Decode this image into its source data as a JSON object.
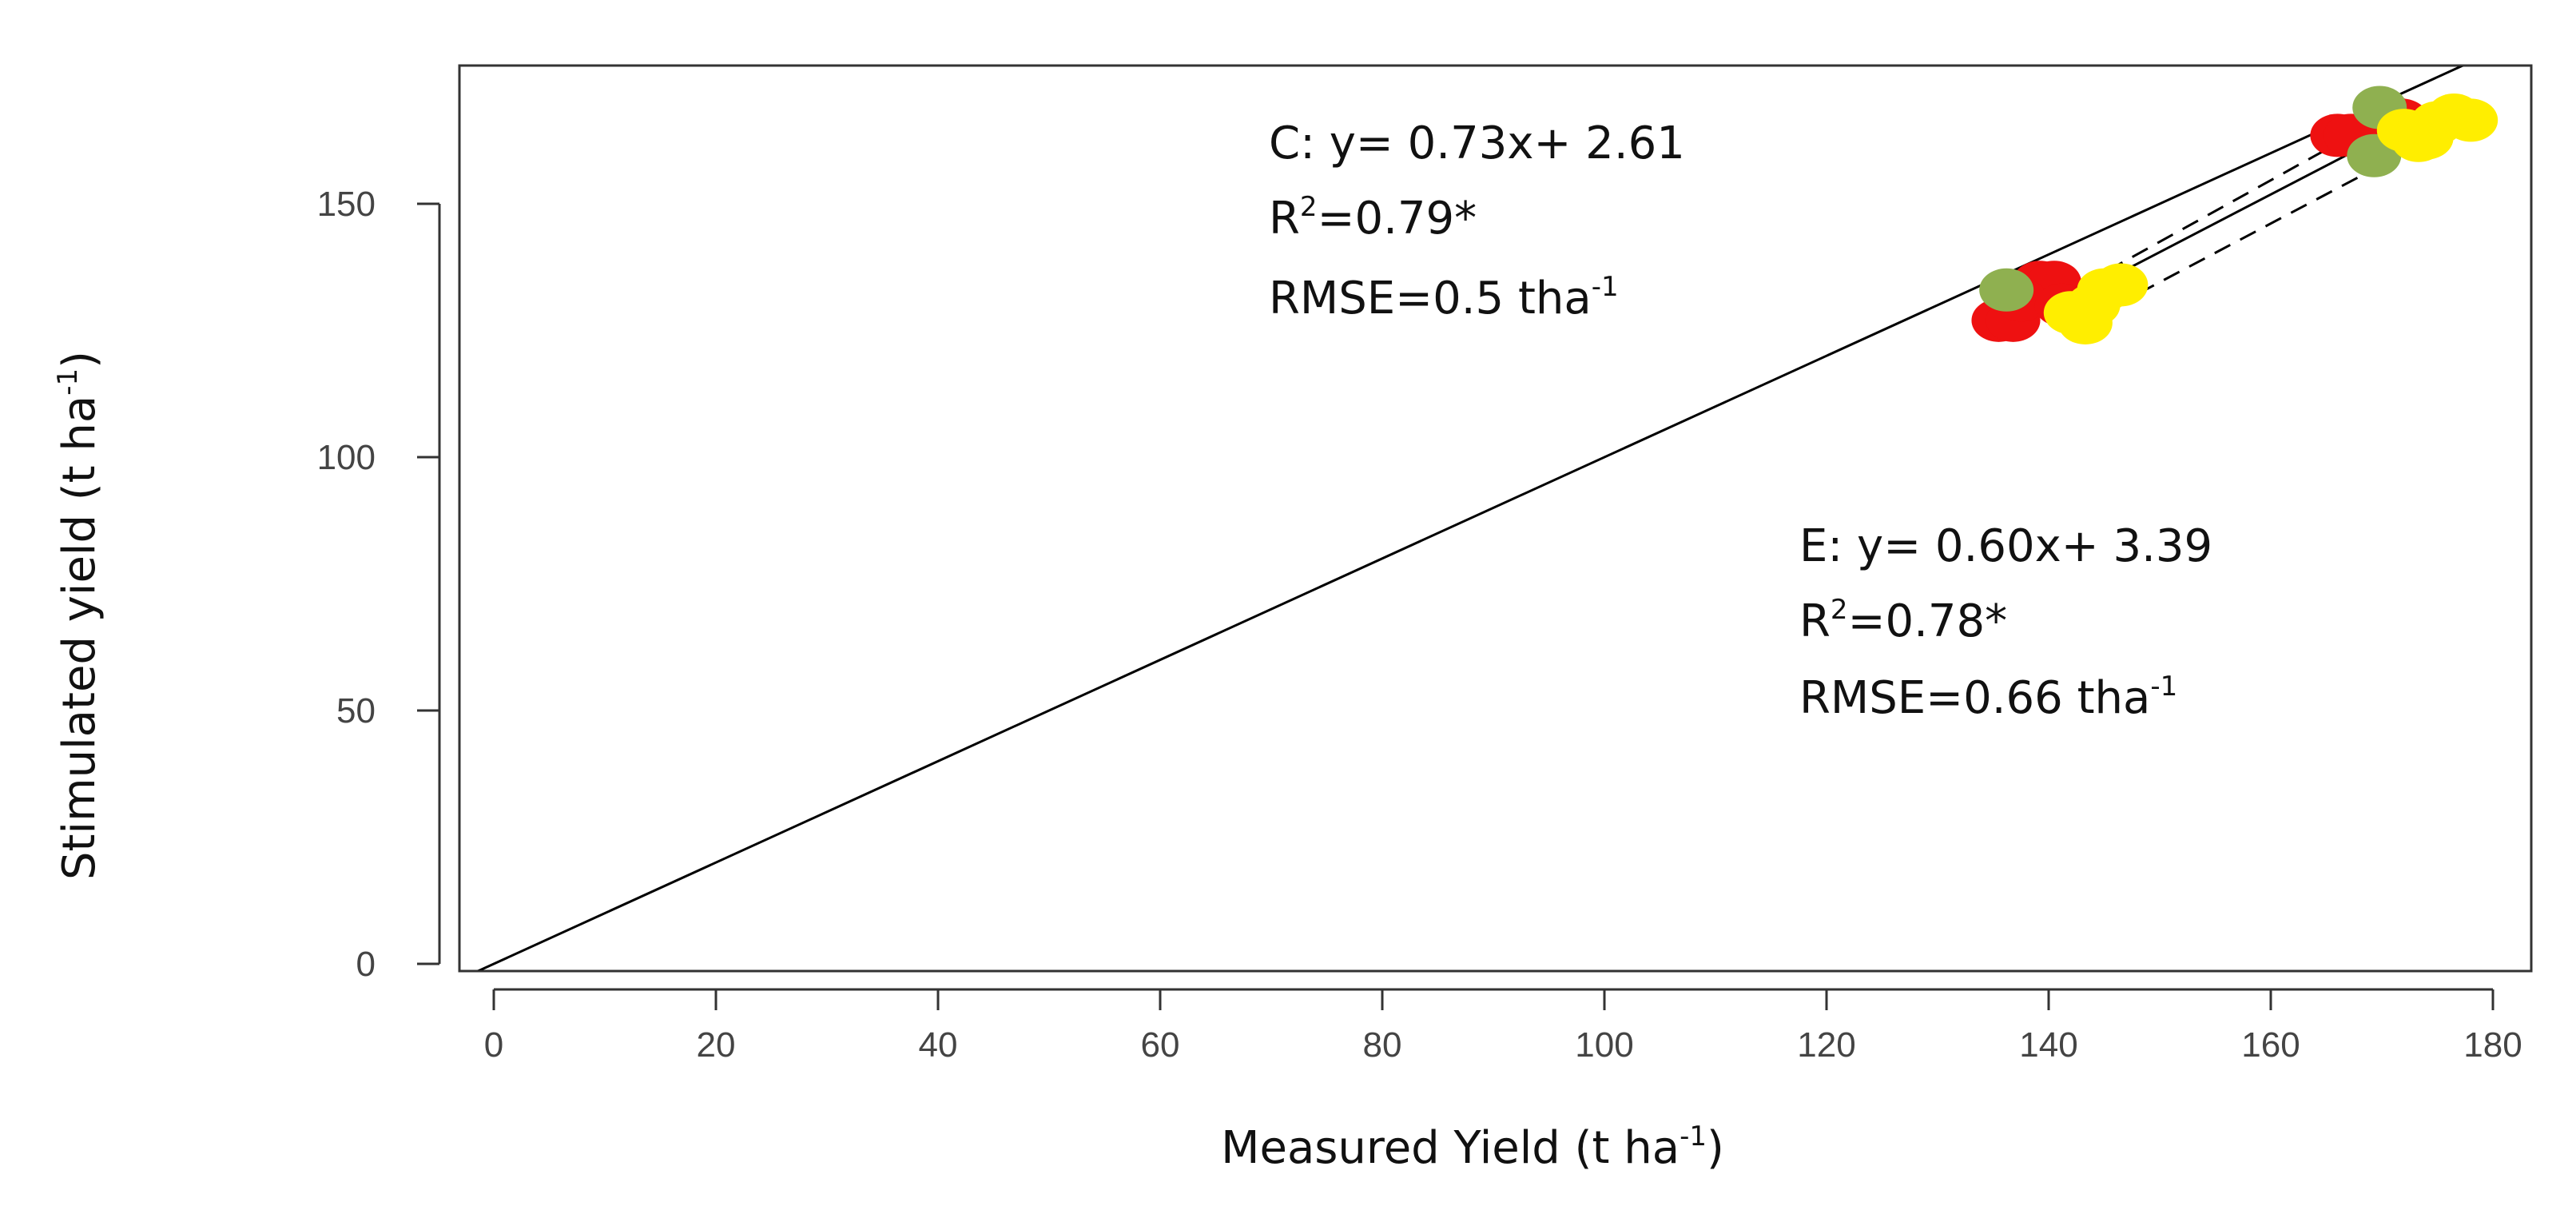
{
  "chart_data": {
    "type": "scatter",
    "xlabel": {
      "text": "Measured Yield (t ha",
      "sup": "-1",
      "tail": ")"
    },
    "ylabel": {
      "text": "Stimulated yield (t ha",
      "sup": "-1",
      "tail": ")"
    },
    "xlim": [
      -3,
      183
    ],
    "ylim": [
      -3,
      176
    ],
    "x_ticks": [
      0,
      20,
      40,
      60,
      80,
      100,
      120,
      140,
      160,
      180
    ],
    "y_ticks": [
      0,
      50,
      100,
      150
    ],
    "grid": false,
    "reference_line": {
      "name": "1:1",
      "x": [
        -3,
        183
      ],
      "y": [
        -3,
        183
      ],
      "color": "#000000"
    },
    "series": [
      {
        "color": "#ee1111",
        "points": [
          [
            135.5,
            127
          ],
          [
            136.8,
            127
          ],
          [
            139.2,
            134.5
          ],
          [
            140.5,
            134.5
          ],
          [
            137.5,
            131
          ],
          [
            141.2,
            130
          ],
          [
            166,
            163.5
          ],
          [
            167.2,
            163.5
          ],
          [
            170.5,
            167.5
          ],
          [
            171.8,
            166.5
          ]
        ]
      },
      {
        "color": "#8fb050",
        "points": [
          [
            136.2,
            133
          ],
          [
            169.8,
            169
          ],
          [
            169.3,
            159.5
          ]
        ]
      },
      {
        "color": "#ffee00",
        "points": [
          [
            142,
            128.5
          ],
          [
            143.3,
            126.5
          ],
          [
            145,
            133
          ],
          [
            146.5,
            134
          ],
          [
            144,
            130
          ],
          [
            172,
            164.5
          ],
          [
            173.3,
            162.5
          ],
          [
            175,
            166
          ],
          [
            176.5,
            167.5
          ],
          [
            178,
            166.5
          ],
          [
            174,
            163
          ]
        ]
      }
    ],
    "fit_lines": [
      {
        "x": [
          143,
          171
        ],
        "y": [
          134,
          168
        ],
        "style": "dashed"
      },
      {
        "x": [
          143,
          172
        ],
        "y": [
          132.5,
          165.5
        ],
        "style": "solid"
      },
      {
        "x": [
          143.5,
          172
        ],
        "y": [
          127,
          160
        ],
        "style": "dashed"
      }
    ],
    "annotations": [
      {
        "id": "c",
        "lines": [
          {
            "text": "C: y= 0.73x+ 2.61"
          },
          {
            "text": "R",
            "sup": "2",
            "tail": "=0.79*"
          },
          {
            "text": "RMSE=0.5 tha",
            "sup": "-1",
            "tail": ""
          }
        ]
      },
      {
        "id": "e",
        "lines": [
          {
            "text": "E: y= 0.60x+ 3.39"
          },
          {
            "text": "R",
            "sup": "2",
            "tail": "=0.78*"
          },
          {
            "text": "RMSE=0.66 tha",
            "sup": "-1",
            "tail": ""
          }
        ]
      }
    ]
  }
}
